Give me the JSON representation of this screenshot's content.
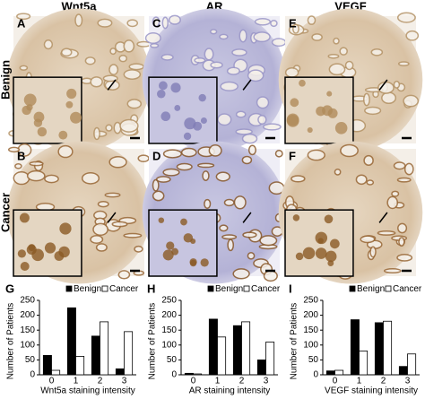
{
  "column_titles": [
    "Wnt5a",
    "AR",
    "VEGF"
  ],
  "row_titles": [
    "Benign",
    "Cancer"
  ],
  "panel_letters": [
    [
      "A",
      "B"
    ],
    [
      "C",
      "D"
    ],
    [
      "E",
      "F"
    ]
  ],
  "chart_data": [
    {
      "type": "bar",
      "panel_label": "G",
      "ylabel": "Number of Patients",
      "xlabel": "Wnt5a staining intensity",
      "categories": [
        "0",
        "1",
        "2",
        "3"
      ],
      "ylim": [
        0,
        250
      ],
      "yticks": [
        0,
        50,
        100,
        150,
        200,
        250
      ],
      "series": [
        {
          "name": "Benign",
          "color": "#000000",
          "values": [
            65,
            225,
            130,
            20
          ]
        },
        {
          "name": "Cancer",
          "color": "#ffffff",
          "values": [
            15,
            62,
            178,
            145
          ]
        }
      ]
    },
    {
      "type": "bar",
      "panel_label": "H",
      "ylabel": "Number of Patients",
      "xlabel": "AR staining intensity",
      "categories": [
        "0",
        "1",
        "2",
        "3"
      ],
      "ylim": [
        0,
        250
      ],
      "yticks": [
        0,
        50,
        100,
        150,
        200,
        250
      ],
      "series": [
        {
          "name": "Benign",
          "color": "#000000",
          "values": [
            5,
            187,
            165,
            50
          ]
        },
        {
          "name": "Cancer",
          "color": "#ffffff",
          "values": [
            3,
            127,
            178,
            110
          ]
        }
      ]
    },
    {
      "type": "bar",
      "panel_label": "I",
      "ylabel": "Number of Patients",
      "xlabel": "VEGF staining intensity",
      "categories": [
        "0",
        "1",
        "2",
        "3"
      ],
      "ylim": [
        0,
        250
      ],
      "yticks": [
        0,
        50,
        100,
        150,
        200,
        250
      ],
      "series": [
        {
          "name": "Benign",
          "color": "#000000",
          "values": [
            13,
            185,
            175,
            28
          ]
        },
        {
          "name": "Cancer",
          "color": "#ffffff",
          "values": [
            15,
            80,
            180,
            70
          ]
        }
      ]
    }
  ]
}
